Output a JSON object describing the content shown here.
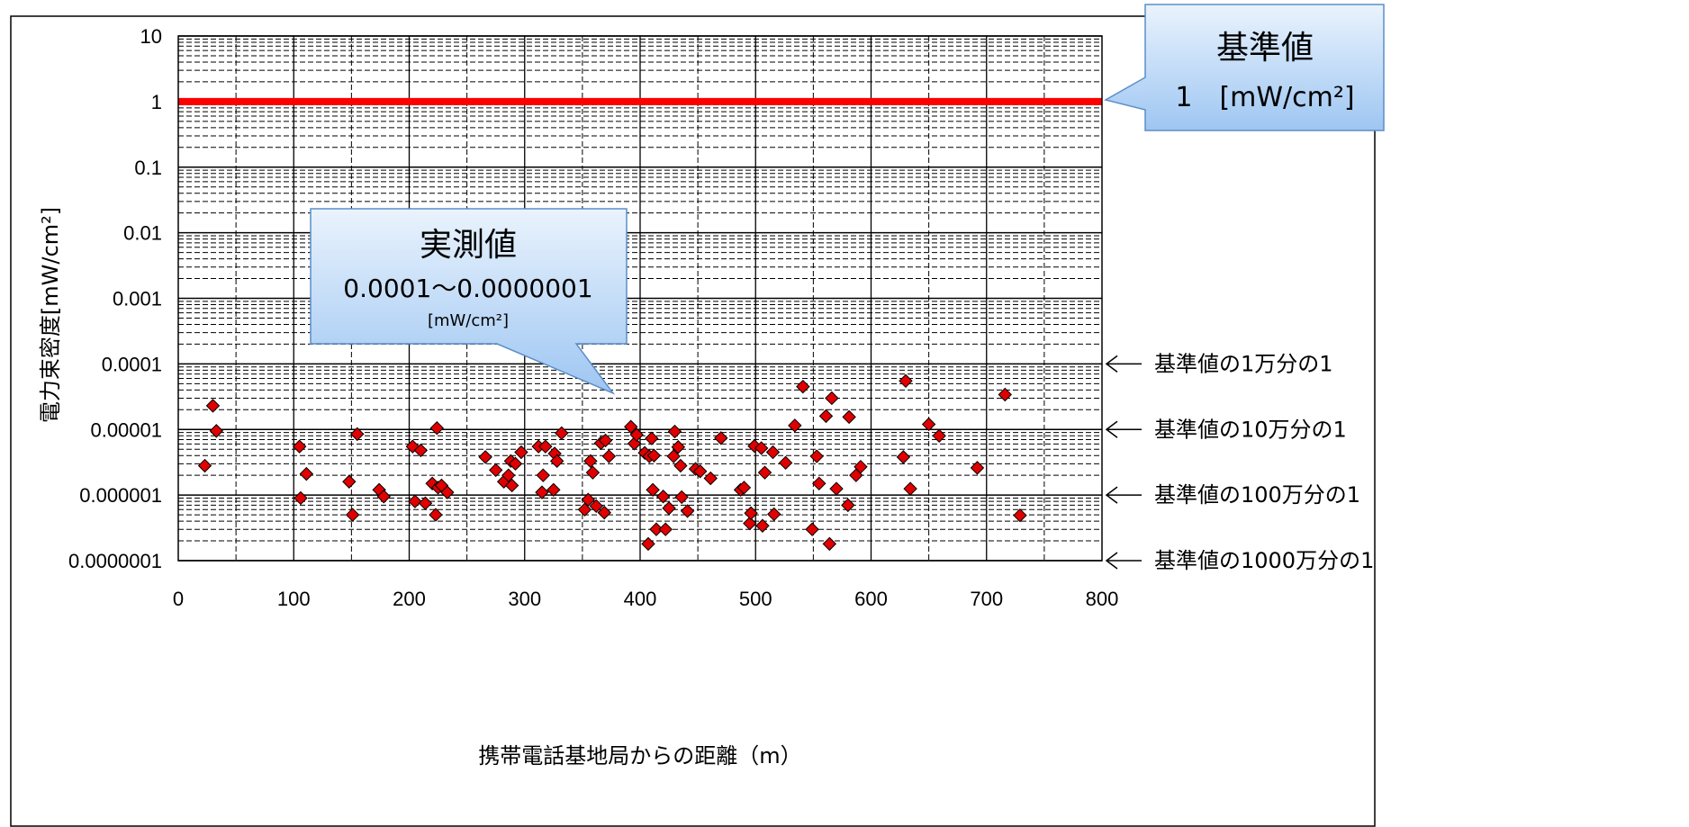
{
  "chart_data": {
    "type": "scatter",
    "xlabel": "携帯電話基地局からの距離（m）",
    "ylabel": "電力束密度[mW/cm²]",
    "xlim": [
      0,
      800
    ],
    "ylim": [
      1e-07,
      10
    ],
    "y_scale": "log",
    "grid": true,
    "x_ticks": [
      "0",
      "100",
      "200",
      "300",
      "400",
      "500",
      "600",
      "700",
      "800"
    ],
    "y_ticks": [
      "10",
      "1",
      "0.1",
      "0.01",
      "0.001",
      "0.0001",
      "0.00001",
      "0.000001",
      "0.0000001"
    ],
    "reference_line": {
      "y": 1,
      "color": "#ff0000"
    },
    "marker_color": "#e00000",
    "series": [
      {
        "marker": "diamond",
        "points": [
          [
            23,
            2.8e-06
          ],
          [
            30,
            2.3e-05
          ],
          [
            33,
            9.5e-06
          ],
          [
            105,
            5.5e-06
          ],
          [
            106,
            9e-07
          ],
          [
            111,
            2.1e-06
          ],
          [
            148,
            1.6e-06
          ],
          [
            151,
            5e-07
          ],
          [
            155,
            8.5e-06
          ],
          [
            174,
            1.2e-06
          ],
          [
            178,
            9.5e-07
          ],
          [
            203,
            5.5e-06
          ],
          [
            205,
            8e-07
          ],
          [
            210,
            4.8e-06
          ],
          [
            214,
            7.5e-07
          ],
          [
            220,
            1.5e-06
          ],
          [
            223,
            5e-07
          ],
          [
            224,
            1.05e-05
          ],
          [
            225,
            1.3e-06
          ],
          [
            228,
            1.4e-06
          ],
          [
            233,
            1.1e-06
          ],
          [
            266,
            3.8e-06
          ],
          [
            275,
            2.4e-06
          ],
          [
            282,
            1.6e-06
          ],
          [
            286,
            2e-06
          ],
          [
            288,
            3.3e-06
          ],
          [
            289,
            1.4e-06
          ],
          [
            292,
            3e-06
          ],
          [
            297,
            4.5e-06
          ],
          [
            312,
            5.5e-06
          ],
          [
            315,
            1.1e-06
          ],
          [
            316,
            2e-06
          ],
          [
            318,
            5.5e-06
          ],
          [
            325,
            1.2e-06
          ],
          [
            326,
            4.3e-06
          ],
          [
            328,
            3.3e-06
          ],
          [
            332,
            8.8e-06
          ],
          [
            352,
            6e-07
          ],
          [
            355,
            8.5e-07
          ],
          [
            357,
            3.3e-06
          ],
          [
            359,
            2.2e-06
          ],
          [
            362,
            6.8e-07
          ],
          [
            366,
            6.2e-06
          ],
          [
            369,
            5.4e-07
          ],
          [
            370,
            6.8e-06
          ],
          [
            373,
            3.9e-06
          ],
          [
            392,
            1.1e-05
          ],
          [
            395,
            6.1e-06
          ],
          [
            397,
            8.3e-06
          ],
          [
            404,
            4.4e-06
          ],
          [
            407,
            1.8e-07
          ],
          [
            408,
            3.9e-06
          ],
          [
            410,
            7.3e-06
          ],
          [
            411,
            1.2e-06
          ],
          [
            412,
            4e-06
          ],
          [
            414,
            3e-07
          ],
          [
            420,
            9.5e-07
          ],
          [
            422,
            3e-07
          ],
          [
            425,
            6.3e-07
          ],
          [
            429,
            3.9e-06
          ],
          [
            430,
            9.3e-06
          ],
          [
            433,
            5.4e-06
          ],
          [
            435,
            2.8e-06
          ],
          [
            436,
            9.3e-07
          ],
          [
            441,
            5.7e-07
          ],
          [
            448,
            2.5e-06
          ],
          [
            452,
            2.3e-06
          ],
          [
            461,
            1.8e-06
          ],
          [
            470,
            7.4e-06
          ],
          [
            487,
            1.2e-06
          ],
          [
            490,
            1.3e-06
          ],
          [
            495,
            3.7e-07
          ],
          [
            496,
            5.3e-07
          ],
          [
            499,
            5.6e-06
          ],
          [
            505,
            5.2e-06
          ],
          [
            506,
            3.4e-07
          ],
          [
            508,
            2.2e-06
          ],
          [
            515,
            4.5e-06
          ],
          [
            516,
            5.1e-07
          ],
          [
            526,
            3.1e-06
          ],
          [
            534,
            1.15e-05
          ],
          [
            541,
            4.5e-05
          ],
          [
            549,
            3e-07
          ],
          [
            553,
            3.9e-06
          ],
          [
            555,
            1.5e-06
          ],
          [
            561,
            1.6e-05
          ],
          [
            564,
            1.8e-07
          ],
          [
            566,
            3e-05
          ],
          [
            570,
            1.25e-06
          ],
          [
            580,
            7e-07
          ],
          [
            581,
            1.55e-05
          ],
          [
            587,
            2e-06
          ],
          [
            591,
            2.7e-06
          ],
          [
            628,
            3.8e-06
          ],
          [
            630,
            5.5e-05
          ],
          [
            634,
            1.25e-06
          ],
          [
            650,
            1.2e-05
          ],
          [
            659,
            8e-06
          ],
          [
            692,
            2.6e-06
          ],
          [
            716,
            3.4e-05
          ],
          [
            729,
            4.9e-07
          ]
        ]
      }
    ],
    "right_annotations": [
      "基準値の1万分の1",
      "基準値の10万分の1",
      "基準値の100万分の1",
      "基準値の1000万分の1"
    ],
    "callouts": {
      "standard": {
        "title": "基準値",
        "value": "1　[mW/cm²]"
      },
      "measured": {
        "title": "実測値",
        "range": "0.0001〜0.0000001",
        "unit": "[mW/cm²]"
      }
    }
  }
}
